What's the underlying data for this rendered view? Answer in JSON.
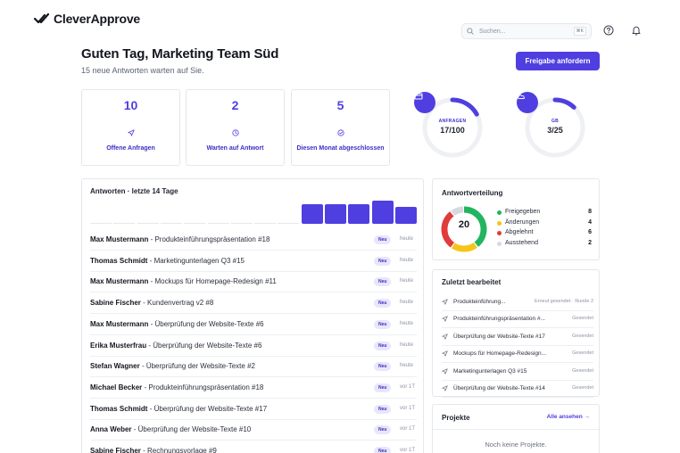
{
  "app": {
    "name": "CleverApprove"
  },
  "header": {
    "search_placeholder": "Suchen...",
    "search_shortcut": "⌘K",
    "help_icon": "help-circle-icon",
    "bell_icon": "bell-icon"
  },
  "greeting": {
    "title": "Guten Tag, Marketing Team Süd",
    "subtitle": "15 neue Antworten warten auf Sie.",
    "cta_label": "Freigabe anfordern"
  },
  "stats": [
    {
      "value": "10",
      "label": "Offene Anfragen",
      "icon": "send-icon"
    },
    {
      "value": "2",
      "label": "Warten auf Antwort",
      "icon": "clock-icon"
    },
    {
      "value": "5",
      "label": "Diesen Monat abgeschlossen",
      "icon": "check-circle-icon"
    }
  ],
  "gauges": [
    {
      "label": "ANFRAGEN",
      "value": "17/100",
      "fraction": 0.17,
      "icon": "card-icon"
    },
    {
      "label": "GB",
      "value": "3/25",
      "fraction": 0.12,
      "icon": "cloud-icon"
    }
  ],
  "responses": {
    "title": "Antworten · letzte 14 Tage",
    "chart_data": {
      "type": "bar",
      "values": [
        0,
        0,
        0,
        0,
        0,
        0,
        0,
        0,
        0,
        3,
        3,
        3,
        3.5,
        2.5
      ]
    },
    "rows": [
      {
        "name": "Max Mustermann",
        "item": " - Produkteinführungspräsentation #18",
        "badge": "Neu",
        "when": "heute"
      },
      {
        "name": "Thomas Schmidt",
        "item": " - Marketingunterlagen Q3 #15",
        "badge": "Neu",
        "when": "heute"
      },
      {
        "name": "Max Mustermann",
        "item": " - Mockups für Homepage-Redesign #11",
        "badge": "Neu",
        "when": "heute"
      },
      {
        "name": "Sabine Fischer",
        "item": " - Kundenvertrag v2 #8",
        "badge": "Neu",
        "when": "heute"
      },
      {
        "name": "Max Mustermann",
        "item": " - Überprüfung der Website-Texte #6",
        "badge": "Neu",
        "when": "heute"
      },
      {
        "name": "Erika Musterfrau",
        "item": " - Überprüfung der Website-Texte #6",
        "badge": "Neu",
        "when": "heute"
      },
      {
        "name": "Stefan Wagner",
        "item": " - Überprüfung der Website-Texte #2",
        "badge": "Neu",
        "when": "heute"
      },
      {
        "name": "Michael Becker",
        "item": " - Produkteinführungspräsentation #18",
        "badge": "Neu",
        "when": "vor 1T"
      },
      {
        "name": "Thomas Schmidt",
        "item": " - Überprüfung der Website-Texte #17",
        "badge": "Neu",
        "when": "vor 1T"
      },
      {
        "name": "Anna Weber",
        "item": " - Überprüfung der Website-Texte #10",
        "badge": "Neu",
        "when": "vor 1T"
      },
      {
        "name": "Sabine Fischer",
        "item": " - Rechnungsvorlage #9",
        "badge": "Neu",
        "when": "vor 1T"
      }
    ]
  },
  "distribution": {
    "title": "Antwortverteilung",
    "total": "20",
    "items": [
      {
        "label": "Freigegeben",
        "value": 8,
        "color": "#22b55f"
      },
      {
        "label": "Änderungen",
        "value": 4,
        "color": "#f5c518"
      },
      {
        "label": "Abgelehnt",
        "value": 6,
        "color": "#e23b3b"
      },
      {
        "label": "Ausstehend",
        "value": 2,
        "color": "#d6d9df"
      }
    ]
  },
  "recent": {
    "title": "Zuletzt bearbeitet",
    "items": [
      {
        "title": "Produkteinführung...",
        "status": "Erneut gesendet · Runde 2"
      },
      {
        "title": "Produkteinführungspräsentation #...",
        "status": "Gesendet"
      },
      {
        "title": "Überprüfung der Website-Texte #17",
        "status": "Gesendet"
      },
      {
        "title": "Mockups für Homepage-Redesign...",
        "status": "Gesendet"
      },
      {
        "title": "Marketingunterlagen Q3 #15",
        "status": "Gesendet"
      },
      {
        "title": "Überprüfung der Website-Texte #14",
        "status": "Gesendet"
      }
    ]
  },
  "projects": {
    "title": "Projekte",
    "link": "Alle ansehen →",
    "empty": "Noch keine Projekte."
  },
  "colors": {
    "accent": "#4f3fe0",
    "border": "#e5e7ec"
  }
}
